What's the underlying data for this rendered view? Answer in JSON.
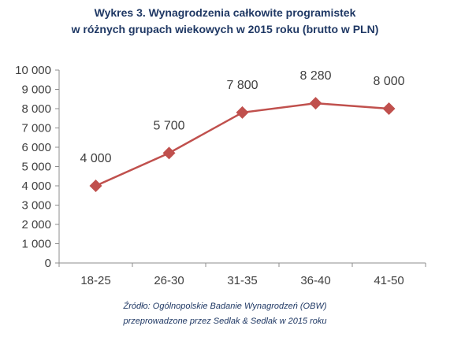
{
  "chart_data": {
    "type": "line",
    "title_line1": "Wykres 3. Wynagrodzenia całkowite programistek",
    "title_line2": "w różnych grupach wiekowych w 2015 roku (brutto w PLN)",
    "categories": [
      "18-25",
      "26-30",
      "31-35",
      "36-40",
      "41-50"
    ],
    "series": [
      {
        "values": [
          4000,
          5700,
          7800,
          8280,
          8000
        ],
        "data_labels": [
          "4 000",
          "5 700",
          "7 800",
          "8 280",
          "8 000"
        ]
      }
    ],
    "ylim": [
      0,
      10000
    ],
    "yticks": [
      0,
      1000,
      2000,
      3000,
      4000,
      5000,
      6000,
      7000,
      8000,
      9000,
      10000
    ],
    "ytick_labels": [
      "0",
      "1 000",
      "2 000",
      "3 000",
      "4 000",
      "5 000",
      "6 000",
      "7 000",
      "8 000",
      "9 000",
      "10 000"
    ],
    "grid": false,
    "line_color": "#c0504d",
    "marker": "diamond",
    "source_line1": "Źródło: Ogólnopolskie Badanie Wynagrodzeń (OBW)",
    "source_line2": "przeprowadzone przez Sedlak & Sedlak w 2015 roku"
  }
}
